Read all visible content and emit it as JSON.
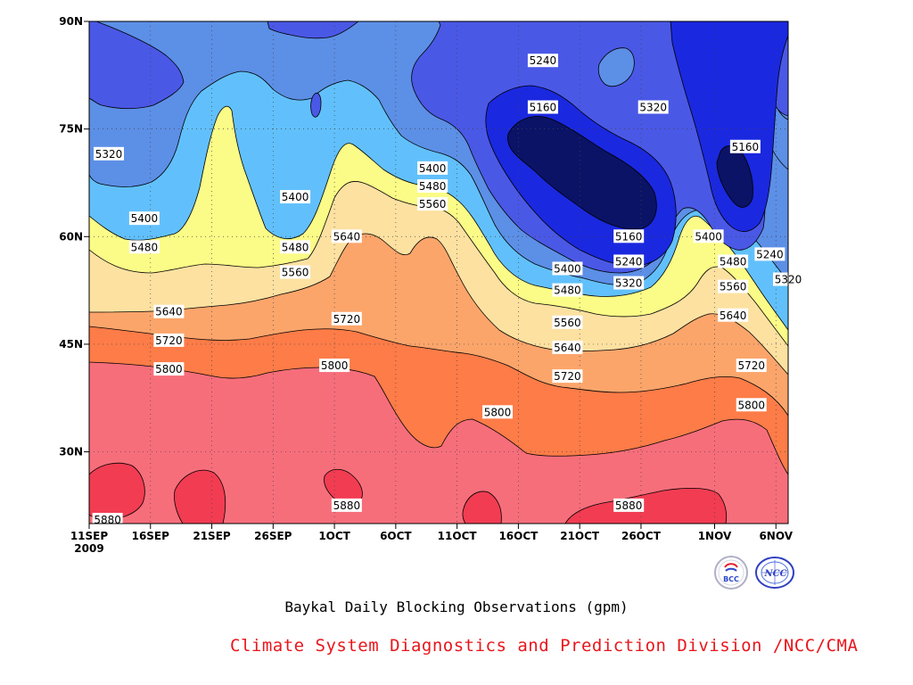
{
  "chart_data": {
    "type": "heatmap",
    "subtype": "filled-contour",
    "title": "Baykal Daily Blocking Observations (gpm)",
    "credit": "Climate System Diagnostics and Prediction Division /NCC/CMA",
    "x_tick_labels": [
      "11SEP",
      "16SEP",
      "21SEP",
      "26SEP",
      "1OCT",
      "6OCT",
      "11OCT",
      "16OCT",
      "21OCT",
      "26OCT",
      "1NOV",
      "6NOV"
    ],
    "x_year_label": "2009",
    "x_days_from_start": [
      0,
      5,
      10,
      15,
      20,
      25,
      30,
      35,
      40,
      45,
      51,
      56
    ],
    "xlim_days": [
      0,
      57
    ],
    "y_tick_labels": [
      "90N",
      "75N",
      "60N",
      "45N",
      "30N"
    ],
    "y_tick_values": [
      90,
      75,
      60,
      45,
      30
    ],
    "ylim": [
      20,
      90
    ],
    "grid": "dotted",
    "levels": [
      5160,
      5240,
      5320,
      5400,
      5480,
      5560,
      5640,
      5720,
      5800,
      5880
    ],
    "colors": {
      "below_5160": "#0a1366",
      "5160_5240": "#1a28e0",
      "5240_5320": "#4a58e6",
      "5320_5400": "#5c8fe6",
      "5400_5480": "#61c0fb",
      "5480_5560": "#fbfb87",
      "5560_5640": "#fde1a1",
      "5640_5720": "#fba56b",
      "5720_5800": "#fd7c48",
      "5800_5880": "#f76e7b",
      "above_5880": "#f23c52"
    },
    "contour_labels": [
      {
        "text": "5320",
        "x": 1.6,
        "y": 71.5
      },
      {
        "text": "5400",
        "x": 4.5,
        "y": 62.5
      },
      {
        "text": "5480",
        "x": 4.5,
        "y": 58.5
      },
      {
        "text": "5640",
        "x": 6.5,
        "y": 49.5
      },
      {
        "text": "5720",
        "x": 6.5,
        "y": 45.5
      },
      {
        "text": "5800",
        "x": 6.5,
        "y": 41.5
      },
      {
        "text": "5880",
        "x": 1.5,
        "y": 20.5
      },
      {
        "text": "5400",
        "x": 16.8,
        "y": 65.5
      },
      {
        "text": "5480",
        "x": 16.8,
        "y": 58.5
      },
      {
        "text": "5560",
        "x": 16.8,
        "y": 55.0
      },
      {
        "text": "5640",
        "x": 21.0,
        "y": 60.0
      },
      {
        "text": "5720",
        "x": 21.0,
        "y": 48.5
      },
      {
        "text": "5800",
        "x": 20.0,
        "y": 42.0
      },
      {
        "text": "5880",
        "x": 21.0,
        "y": 22.5
      },
      {
        "text": "5400",
        "x": 28.0,
        "y": 69.5
      },
      {
        "text": "5480",
        "x": 28.0,
        "y": 67.0
      },
      {
        "text": "5560",
        "x": 28.0,
        "y": 64.5
      },
      {
        "text": "5800",
        "x": 33.3,
        "y": 35.5
      },
      {
        "text": "5240",
        "x": 37.0,
        "y": 84.5
      },
      {
        "text": "5160",
        "x": 37.0,
        "y": 78.0
      },
      {
        "text": "5320",
        "x": 46.0,
        "y": 78.0
      },
      {
        "text": "5160",
        "x": 44.0,
        "y": 60.0
      },
      {
        "text": "5240",
        "x": 44.0,
        "y": 56.5
      },
      {
        "text": "5320",
        "x": 44.0,
        "y": 53.5
      },
      {
        "text": "5400",
        "x": 39.0,
        "y": 55.5
      },
      {
        "text": "5480",
        "x": 39.0,
        "y": 52.5
      },
      {
        "text": "5560",
        "x": 39.0,
        "y": 48.0
      },
      {
        "text": "5640",
        "x": 39.0,
        "y": 44.5
      },
      {
        "text": "5720",
        "x": 39.0,
        "y": 40.5
      },
      {
        "text": "5880",
        "x": 44.0,
        "y": 22.5
      },
      {
        "text": "5160",
        "x": 53.5,
        "y": 72.5
      },
      {
        "text": "5400",
        "x": 50.5,
        "y": 60.0
      },
      {
        "text": "5480",
        "x": 52.5,
        "y": 56.5
      },
      {
        "text": "5560",
        "x": 52.5,
        "y": 53.0
      },
      {
        "text": "5640",
        "x": 52.5,
        "y": 49.0
      },
      {
        "text": "5720",
        "x": 54.0,
        "y": 42.0
      },
      {
        "text": "5800",
        "x": 54.0,
        "y": 36.5
      },
      {
        "text": "5240",
        "x": 55.5,
        "y": 57.5
      },
      {
        "text": "5320",
        "x": 57.0,
        "y": 54.0
      }
    ]
  },
  "logos": {
    "bcc_text": "BCC",
    "ncc_text": "NCC"
  }
}
